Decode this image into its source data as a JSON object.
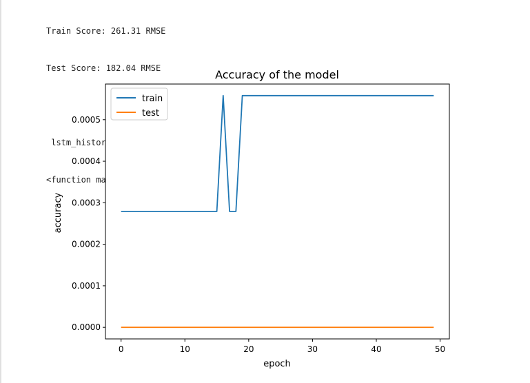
{
  "output": {
    "lines": [
      "Train Score: 261.31 RMSE",
      "Test Score: 182.04 RMSE",
      "",
      " lstm_history  dict_keys(['loss', 'accuracy', 'val_loss', 'val_accuracy'])",
      "<function matplotlib.pyplot.show(close=None, block=None)>"
    ]
  },
  "chart_data": {
    "type": "line",
    "title": "Accuracy of the model",
    "xlabel": "epoch",
    "ylabel": "accuracy",
    "xlim": [
      -2.45,
      51.45
    ],
    "ylim": [
      -2.79e-05,
      0.0005859
    ],
    "xticks": [
      0,
      10,
      20,
      30,
      40,
      50
    ],
    "xtick_labels": [
      "0",
      "10",
      "20",
      "30",
      "40",
      "50"
    ],
    "yticks": [
      0.0,
      0.0001,
      0.0002,
      0.0003,
      0.0004,
      0.0005
    ],
    "ytick_labels": [
      "0.0000",
      "0.0001",
      "0.0002",
      "0.0003",
      "0.0004",
      "0.0005"
    ],
    "legend_position": "upper-left",
    "grid": false,
    "series": [
      {
        "name": "train",
        "color": "#1f77b4",
        "x": [
          0,
          1,
          2,
          3,
          4,
          5,
          6,
          7,
          8,
          9,
          10,
          11,
          12,
          13,
          14,
          15,
          16,
          17,
          18,
          19,
          20,
          21,
          22,
          23,
          24,
          25,
          26,
          27,
          28,
          29,
          30,
          31,
          32,
          33,
          34,
          35,
          36,
          37,
          38,
          39,
          40,
          41,
          42,
          43,
          44,
          45,
          46,
          47,
          48,
          49
        ],
        "values": [
          0.000279,
          0.000279,
          0.000279,
          0.000279,
          0.000279,
          0.000279,
          0.000279,
          0.000279,
          0.000279,
          0.000279,
          0.000279,
          0.000279,
          0.000279,
          0.000279,
          0.000279,
          0.000279,
          0.000558,
          0.000279,
          0.000279,
          0.000558,
          0.000558,
          0.000558,
          0.000558,
          0.000558,
          0.000558,
          0.000558,
          0.000558,
          0.000558,
          0.000558,
          0.000558,
          0.000558,
          0.000558,
          0.000558,
          0.000558,
          0.000558,
          0.000558,
          0.000558,
          0.000558,
          0.000558,
          0.000558,
          0.000558,
          0.000558,
          0.000558,
          0.000558,
          0.000558,
          0.000558,
          0.000558,
          0.000558,
          0.000558,
          0.000558
        ]
      },
      {
        "name": "test",
        "color": "#ff7f0e",
        "x": [
          0,
          1,
          2,
          3,
          4,
          5,
          6,
          7,
          8,
          9,
          10,
          11,
          12,
          13,
          14,
          15,
          16,
          17,
          18,
          19,
          20,
          21,
          22,
          23,
          24,
          25,
          26,
          27,
          28,
          29,
          30,
          31,
          32,
          33,
          34,
          35,
          36,
          37,
          38,
          39,
          40,
          41,
          42,
          43,
          44,
          45,
          46,
          47,
          48,
          49
        ],
        "values": [
          0,
          0,
          0,
          0,
          0,
          0,
          0,
          0,
          0,
          0,
          0,
          0,
          0,
          0,
          0,
          0,
          0,
          0,
          0,
          0,
          0,
          0,
          0,
          0,
          0,
          0,
          0,
          0,
          0,
          0,
          0,
          0,
          0,
          0,
          0,
          0,
          0,
          0,
          0,
          0,
          0,
          0,
          0,
          0,
          0,
          0,
          0,
          0,
          0,
          0
        ]
      }
    ]
  }
}
